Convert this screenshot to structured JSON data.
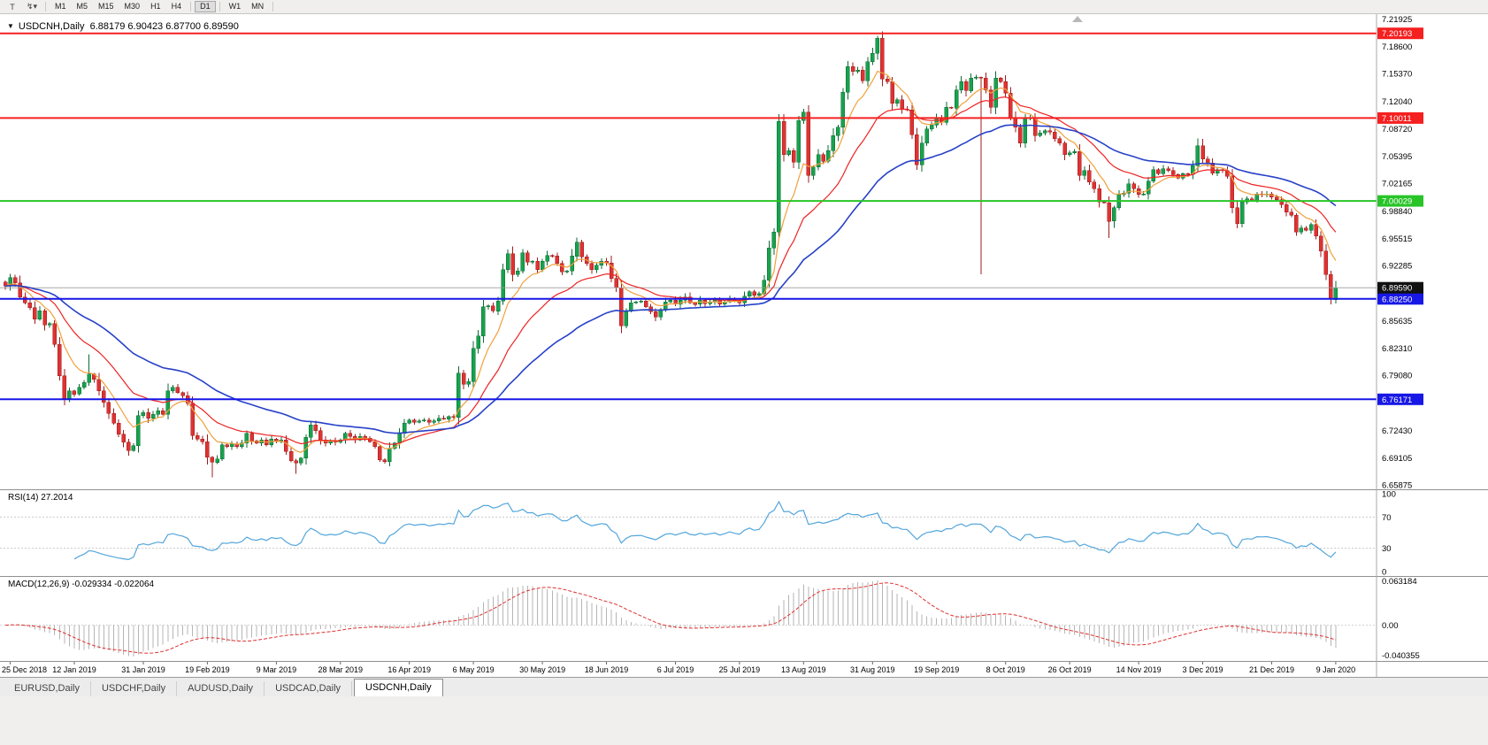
{
  "toolbar": {
    "icons": [
      {
        "name": "chart-tools-icon",
        "glyph": "T"
      },
      {
        "name": "zigzag-tool-icon",
        "glyph": "↯"
      },
      {
        "name": "caret-down-icon",
        "glyph": "▾"
      }
    ],
    "groups": [
      [
        "M1",
        "M5",
        "M15",
        "M30",
        "H1",
        "H4"
      ],
      [
        "D1"
      ],
      [
        "W1",
        "MN"
      ]
    ],
    "active_timeframe": "D1"
  },
  "chart_data": {
    "type": "candlestick",
    "symbol": "USDCNH",
    "timeframe": "Daily",
    "ohlc_display": {
      "open": "6.88179",
      "high": "6.90423",
      "low": "6.87700",
      "close": "6.89590"
    },
    "closes": [
      6.898,
      6.908,
      6.902,
      6.885,
      6.878,
      6.872,
      6.858,
      6.868,
      6.851,
      6.853,
      6.828,
      6.79,
      6.763,
      6.772,
      6.768,
      6.776,
      6.782,
      6.792,
      6.786,
      6.772,
      6.758,
      6.745,
      6.733,
      6.72,
      6.71,
      6.7,
      6.706,
      6.742,
      6.746,
      6.739,
      6.744,
      6.748,
      6.744,
      6.772,
      6.776,
      6.77,
      6.766,
      6.757,
      6.718,
      6.714,
      6.711,
      6.692,
      6.686,
      6.69,
      6.707,
      6.705,
      6.708,
      6.705,
      6.709,
      6.721,
      6.712,
      6.709,
      6.713,
      6.707,
      6.714,
      6.711,
      6.713,
      6.699,
      6.688,
      6.685,
      6.691,
      6.716,
      6.731,
      6.724,
      6.713,
      6.709,
      6.712,
      6.71,
      6.713,
      6.721,
      6.717,
      6.713,
      6.717,
      6.715,
      6.711,
      6.705,
      6.689,
      6.687,
      6.703,
      6.709,
      6.721,
      6.733,
      6.737,
      6.734,
      6.736,
      6.737,
      6.734,
      6.736,
      6.739,
      6.738,
      6.741,
      6.74,
      6.793,
      6.78,
      6.783,
      6.823,
      6.838,
      6.873,
      6.874,
      6.868,
      6.88,
      6.918,
      6.937,
      6.912,
      6.916,
      6.938,
      6.927,
      6.928,
      6.918,
      6.928,
      6.935,
      6.934,
      6.925,
      6.915,
      6.916,
      6.934,
      6.951,
      6.933,
      6.925,
      6.918,
      6.923,
      6.928,
      6.926,
      6.907,
      6.896,
      6.85,
      6.868,
      6.878,
      6.879,
      6.88,
      6.873,
      6.867,
      6.861,
      6.87,
      6.879,
      6.881,
      6.876,
      6.881,
      6.885,
      6.878,
      6.876,
      6.881,
      6.877,
      6.879,
      6.881,
      6.876,
      6.879,
      6.883,
      6.88,
      6.878,
      6.886,
      6.891,
      6.887,
      6.889,
      6.905,
      6.944,
      6.963,
      7.096,
      7.056,
      7.061,
      7.047,
      7.097,
      7.107,
      7.031,
      7.041,
      7.056,
      7.048,
      7.061,
      7.079,
      7.089,
      7.131,
      7.162,
      7.156,
      7.158,
      7.145,
      7.168,
      7.178,
      7.196,
      7.147,
      7.144,
      7.118,
      7.122,
      7.111,
      7.11,
      7.08,
      7.044,
      7.07,
      7.087,
      7.092,
      7.101,
      7.095,
      7.113,
      7.112,
      7.134,
      7.144,
      7.133,
      7.148,
      7.149,
      7.148,
      7.134,
      7.113,
      7.148,
      7.144,
      7.13,
      7.101,
      7.089,
      7.07,
      7.099,
      7.101,
      7.079,
      7.082,
      7.085,
      7.083,
      7.075,
      7.07,
      7.056,
      7.058,
      7.06,
      7.031,
      7.037,
      7.023,
      7.015,
      6.999,
      6.998,
      6.976,
      6.992,
      7.008,
      7.01,
      7.021,
      7.015,
      7.008,
      7.009,
      7.024,
      7.038,
      7.033,
      7.039,
      7.037,
      7.032,
      7.028,
      7.033,
      7.032,
      7.043,
      7.067,
      7.051,
      7.046,
      7.034,
      7.038,
      7.037,
      7.03,
      6.992,
      6.973,
      6.999,
      7.003,
      7.001,
      7.009,
      7.008,
      7.009,
      7.005,
      7.002,
      6.996,
      6.987,
      6.983,
      6.963,
      6.968,
      6.965,
      6.972,
      6.958,
      6.94,
      6.912,
      6.882,
      6.896
    ],
    "special_wicks": [
      {
        "i": 17,
        "high": 6.816
      },
      {
        "i": 42,
        "low": 6.668
      },
      {
        "i": 59,
        "low": 6.672
      },
      {
        "i": 177,
        "high": 7.199
      },
      {
        "i": 198,
        "low": 6.912
      },
      {
        "i": 224,
        "low": 6.956
      }
    ],
    "date_labels": [
      "25 Dec 2018",
      "12 Jan 2019",
      "31 Jan 2019",
      "19 Feb 2019",
      "9 Mar 2019",
      "28 Mar 2019",
      "16 Apr 2019",
      "6 May 2019",
      "30 May 2019",
      "18 Jun 2019",
      "6 Jul 2019",
      "25 Jul 2019",
      "13 Aug 2019",
      "31 Aug 2019",
      "19 Sep 2019",
      "8 Oct 2019",
      "26 Oct 2019",
      "14 Nov 2019",
      "3 Dec 2019",
      "21 Dec 2019",
      "9 Jan 2020"
    ],
    "price_axis": {
      "labels": [
        "7.21925",
        "7.18600",
        "7.15370",
        "7.12040",
        "7.08720",
        "7.05395",
        "7.02165",
        "6.98840",
        "6.95515",
        "6.92285",
        "6.85635",
        "6.82310",
        "6.79080",
        "6.72430",
        "6.69105",
        "6.65875"
      ]
    },
    "hlines": [
      {
        "value": 7.20193,
        "label": "7.20193",
        "color": "#f52020"
      },
      {
        "value": 7.10011,
        "label": "7.10011",
        "color": "#f52020"
      },
      {
        "value": 7.00029,
        "label": "7.00029",
        "color": "#28c428"
      },
      {
        "value": 6.8825,
        "label": "6.88250",
        "color": "#1717e6"
      },
      {
        "value": 6.76171,
        "label": "6.76171",
        "color": "#1717e6"
      }
    ],
    "current_price": {
      "value": 6.8959,
      "label": "6.89590",
      "box_color": "#111111"
    },
    "moving_averages": [
      {
        "period": 8,
        "color": "#f0a03c"
      },
      {
        "period": 20,
        "color": "#ee2222"
      },
      {
        "period": 45,
        "color": "#2741c8"
      }
    ],
    "colors": {
      "candle_up": "#17a24d",
      "candle_up_border": "#0b6b33",
      "candle_down": "#df3232",
      "candle_down_border": "#9e1c1c",
      "background": "#ffffff",
      "axis_text": "#000000"
    },
    "rsi": {
      "label": "RSI(14) 27.2014",
      "period": 14,
      "current": 27.2014,
      "levels": [
        "100",
        "70",
        "30",
        "0"
      ],
      "color": "#53a6db"
    },
    "macd": {
      "label": "MACD(12,26,9) -0.029334 -0.022064",
      "values_display": [
        "-0.029334",
        "-0.022064"
      ],
      "axis_labels": [
        "0.063184",
        "0.00",
        "-0.040355"
      ],
      "histogram_color": "#b5b5b5",
      "signal_color": "#e03030"
    }
  },
  "tabs": {
    "items": [
      "EURUSD,Daily",
      "USDCHF,Daily",
      "AUDUSD,Daily",
      "USDCAD,Daily",
      "USDCNH,Daily"
    ],
    "active": "USDCNH,Daily"
  }
}
